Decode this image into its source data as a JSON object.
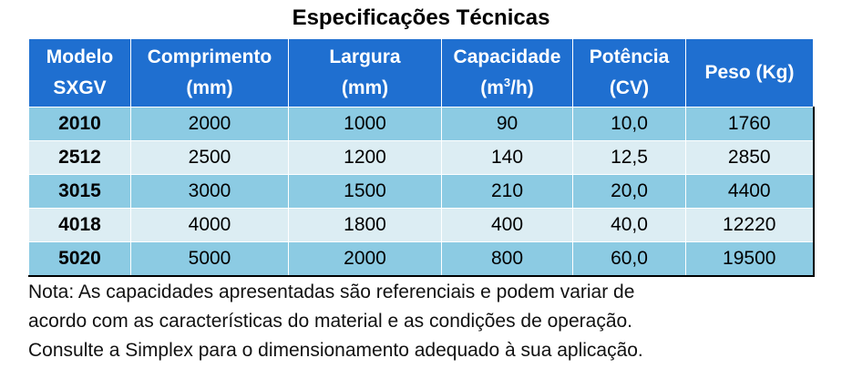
{
  "title": "Especificações Técnicas",
  "table": {
    "headers": [
      {
        "line1": "Modelo",
        "line2": "SXGV"
      },
      {
        "line1": "Comprimento",
        "line2": "(mm)"
      },
      {
        "line1": "Largura",
        "line2": "(mm)"
      },
      {
        "line1": "Capacidade",
        "line2_pre": "(m",
        "line2_sup": "3",
        "line2_post": "/h)"
      },
      {
        "line1": "Potência",
        "line2": "(CV)"
      },
      {
        "line1": "Peso (Kg)"
      }
    ],
    "rows": [
      {
        "modelo": "2010",
        "comprimento": "2000",
        "largura": "1000",
        "capacidade": "90",
        "potencia": "10,0",
        "peso": "1760"
      },
      {
        "modelo": "2512",
        "comprimento": "2500",
        "largura": "1200",
        "capacidade": "140",
        "potencia": "12,5",
        "peso": "2850"
      },
      {
        "modelo": "3015",
        "comprimento": "3000",
        "largura": "1500",
        "capacidade": "210",
        "potencia": "20,0",
        "peso": "4400"
      },
      {
        "modelo": "4018",
        "comprimento": "4000",
        "largura": "1800",
        "capacidade": "400",
        "potencia": "40,0",
        "peso": "12220"
      },
      {
        "modelo": "5020",
        "comprimento": "5000",
        "largura": "2000",
        "capacidade": "800",
        "potencia": "60,0",
        "peso": "19500"
      }
    ]
  },
  "note": {
    "lines": [
      "Nota: As capacidades apresentadas são referenciais e podem variar de",
      "acordo com as características do material e as condições de operação.",
      "Consulte a Simplex para o dimensionamento adequado à sua aplicação."
    ]
  },
  "colors": {
    "header_bg": "#1f6fd0",
    "row_dark": "#8ccbe3",
    "row_light": "#dcedf3"
  }
}
